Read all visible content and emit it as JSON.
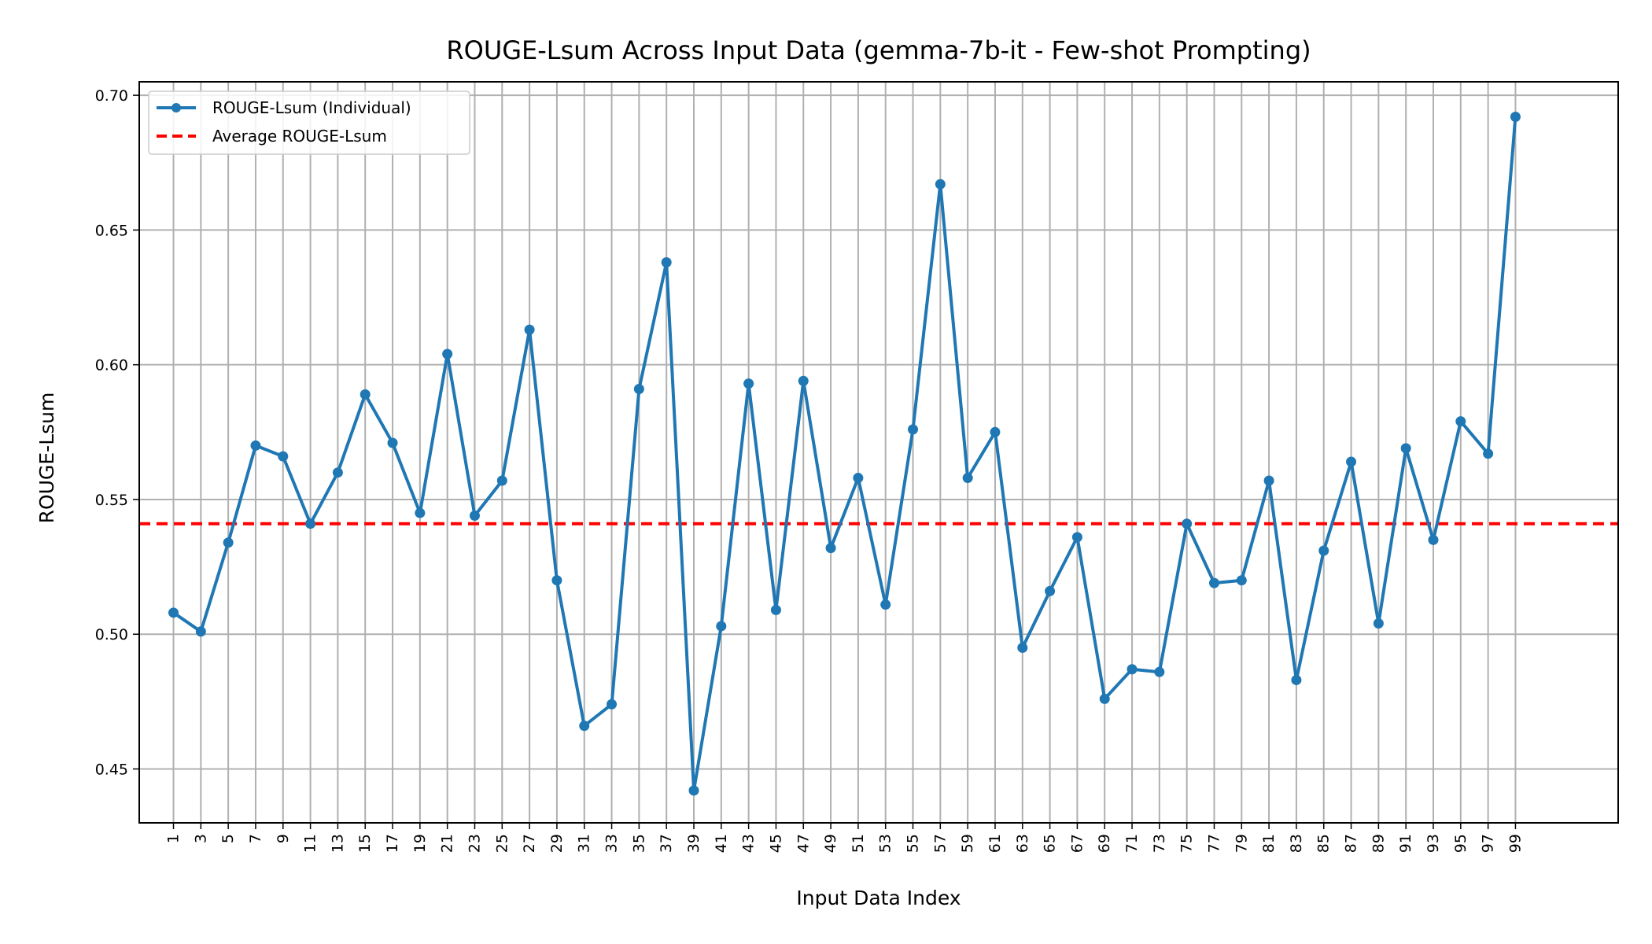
{
  "chart_data": {
    "type": "line",
    "title": "ROUGE-Lsum Across Input Data (gemma-7b-it - Few-shot Prompting)",
    "xlabel": "Input Data Index",
    "ylabel": "ROUGE-Lsum",
    "x": [
      1,
      3,
      5,
      7,
      9,
      11,
      13,
      15,
      17,
      19,
      21,
      23,
      25,
      27,
      29,
      31,
      33,
      35,
      37,
      39,
      41,
      43,
      45,
      47,
      49,
      51,
      53,
      55,
      57,
      59,
      61,
      63,
      65,
      67,
      69,
      71,
      73,
      75,
      77,
      79,
      81,
      83,
      85,
      87,
      89,
      91,
      93,
      95,
      97,
      99
    ],
    "x_ticks": [
      "1",
      "3",
      "5",
      "7",
      "9",
      "11",
      "13",
      "15",
      "17",
      "19",
      "21",
      "23",
      "25",
      "27",
      "29",
      "31",
      "33",
      "35",
      "37",
      "39",
      "41",
      "43",
      "45",
      "47",
      "49",
      "51",
      "53",
      "55",
      "57",
      "59",
      "61",
      "63",
      "65",
      "67",
      "69",
      "71",
      "73",
      "75",
      "77",
      "79",
      "81",
      "83",
      "85",
      "87",
      "89",
      "91",
      "93",
      "95",
      "97",
      "99"
    ],
    "xlim": [
      -1.5,
      106.5
    ],
    "y_ticks": [
      "0.45",
      "0.50",
      "0.55",
      "0.60",
      "0.65",
      "0.70"
    ],
    "y_tick_values": [
      0.45,
      0.5,
      0.55,
      0.6,
      0.65,
      0.7
    ],
    "ylim": [
      0.43,
      0.705
    ],
    "grid": true,
    "legend_position": "top-left",
    "series": [
      {
        "name": "ROUGE-Lsum (Individual)",
        "color": "#1f77b4",
        "style": "line-with-markers",
        "values": [
          0.508,
          0.501,
          0.534,
          0.57,
          0.566,
          0.541,
          0.56,
          0.589,
          0.571,
          0.545,
          0.604,
          0.544,
          0.557,
          0.613,
          0.52,
          0.466,
          0.474,
          0.591,
          0.638,
          0.442,
          0.503,
          0.593,
          0.509,
          0.594,
          0.532,
          0.558,
          0.511,
          0.576,
          0.667,
          0.558,
          0.575,
          0.495,
          0.516,
          0.536,
          0.476,
          0.487,
          0.486,
          0.541,
          0.519,
          0.52,
          0.557,
          0.483,
          0.531,
          0.564,
          0.504,
          0.569,
          0.535,
          0.579,
          0.567,
          0.692
        ]
      },
      {
        "name": "Average ROUGE-Lsum",
        "color": "#ff0000",
        "style": "dashed",
        "value": 0.541
      }
    ]
  }
}
